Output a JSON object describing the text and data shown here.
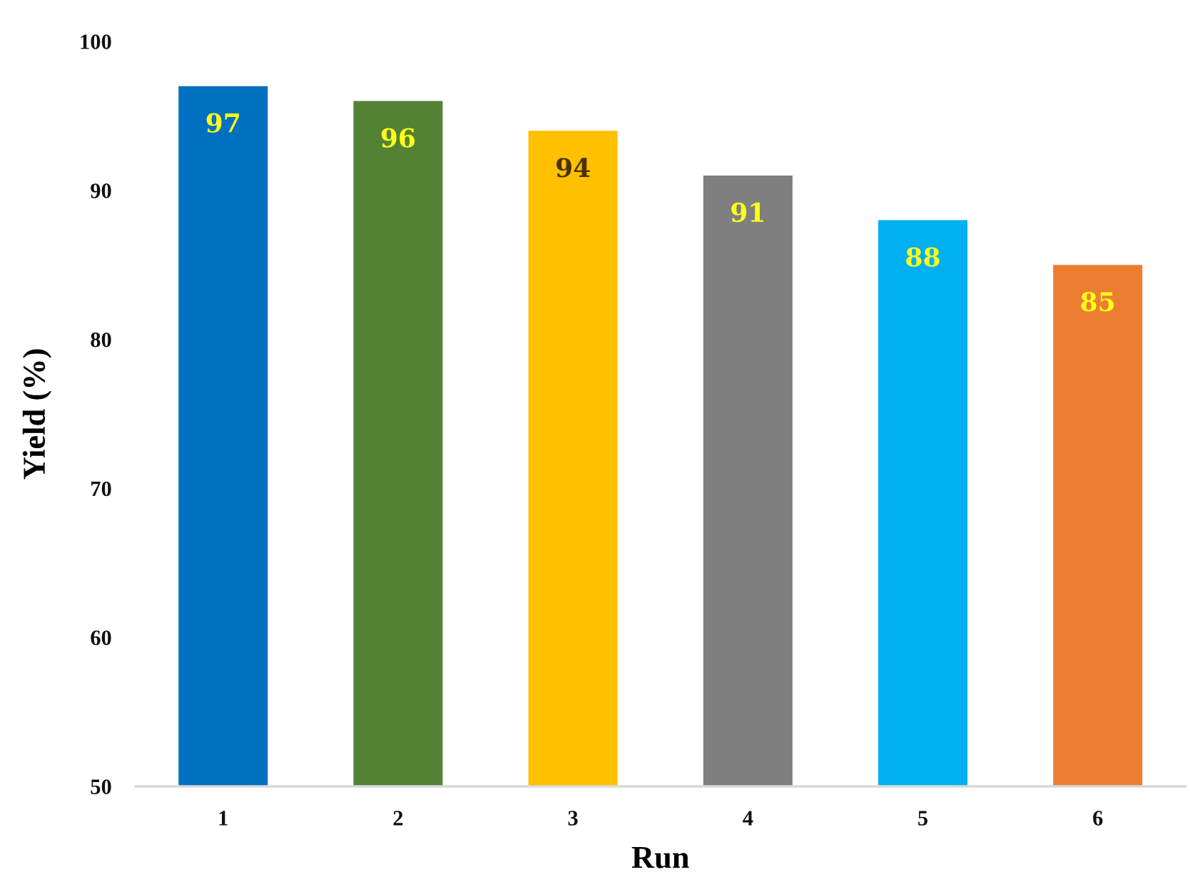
{
  "chart_data": {
    "type": "bar",
    "xlabel": "Run",
    "ylabel": "Yield (%)",
    "categories": [
      "1",
      "2",
      "3",
      "4",
      "5",
      "6"
    ],
    "values": [
      97,
      96,
      94,
      91,
      88,
      85
    ],
    "colors": [
      "#0070c0",
      "#548235",
      "#ffc000",
      "#7f7f7f",
      "#00b0f0",
      "#ed7d31"
    ],
    "ylim": [
      50,
      100
    ],
    "yticks": [
      50,
      60,
      70,
      80,
      90,
      100
    ],
    "data_labels": true
  }
}
